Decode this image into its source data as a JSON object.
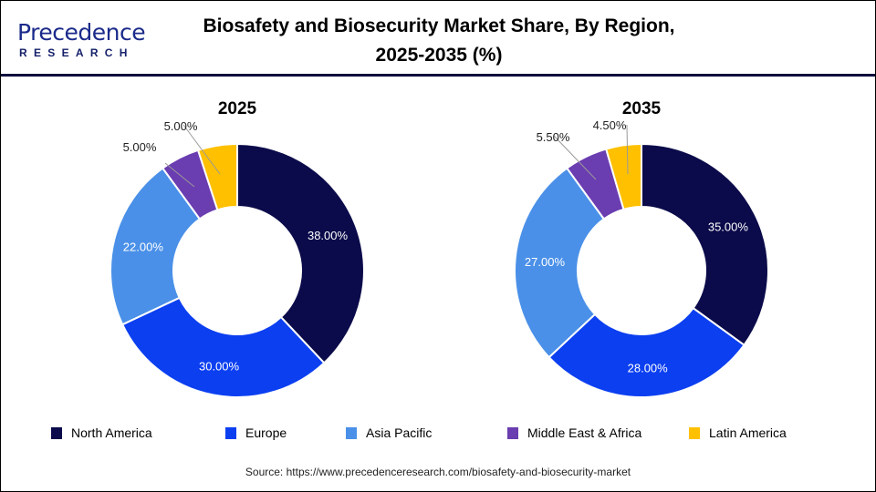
{
  "logo": {
    "line1": "Precedence",
    "line2": "RESEARCH"
  },
  "title_line1": "Biosafety and Biosecurity Market Share, By Region,",
  "title_line2": "2025-2035 (%)",
  "source": "Source: https://www.precedenceresearch.com/biosafety-and-biosecurity-market",
  "chart_data": {
    "type": "pie",
    "donut": true,
    "categories": [
      "North America",
      "Europe",
      "Asia Pacific",
      "Middle East & Africa",
      "Latin America"
    ],
    "colors": [
      "#0b0b4b",
      "#0b3ff0",
      "#4a90e8",
      "#6a3db0",
      "#ffc000"
    ],
    "legend_position": "bottom",
    "charts": [
      {
        "title": "2025",
        "values": [
          38.0,
          30.0,
          22.0,
          5.0,
          5.0
        ],
        "labels": [
          "38.00%",
          "30.00%",
          "22.00%",
          "5.00%",
          "5.00%"
        ]
      },
      {
        "title": "2035",
        "values": [
          35.0,
          28.0,
          27.0,
          5.5,
          4.5
        ],
        "labels": [
          "35.00%",
          "28.00%",
          "27.00%",
          "5.50%",
          "4.50%"
        ]
      }
    ]
  }
}
